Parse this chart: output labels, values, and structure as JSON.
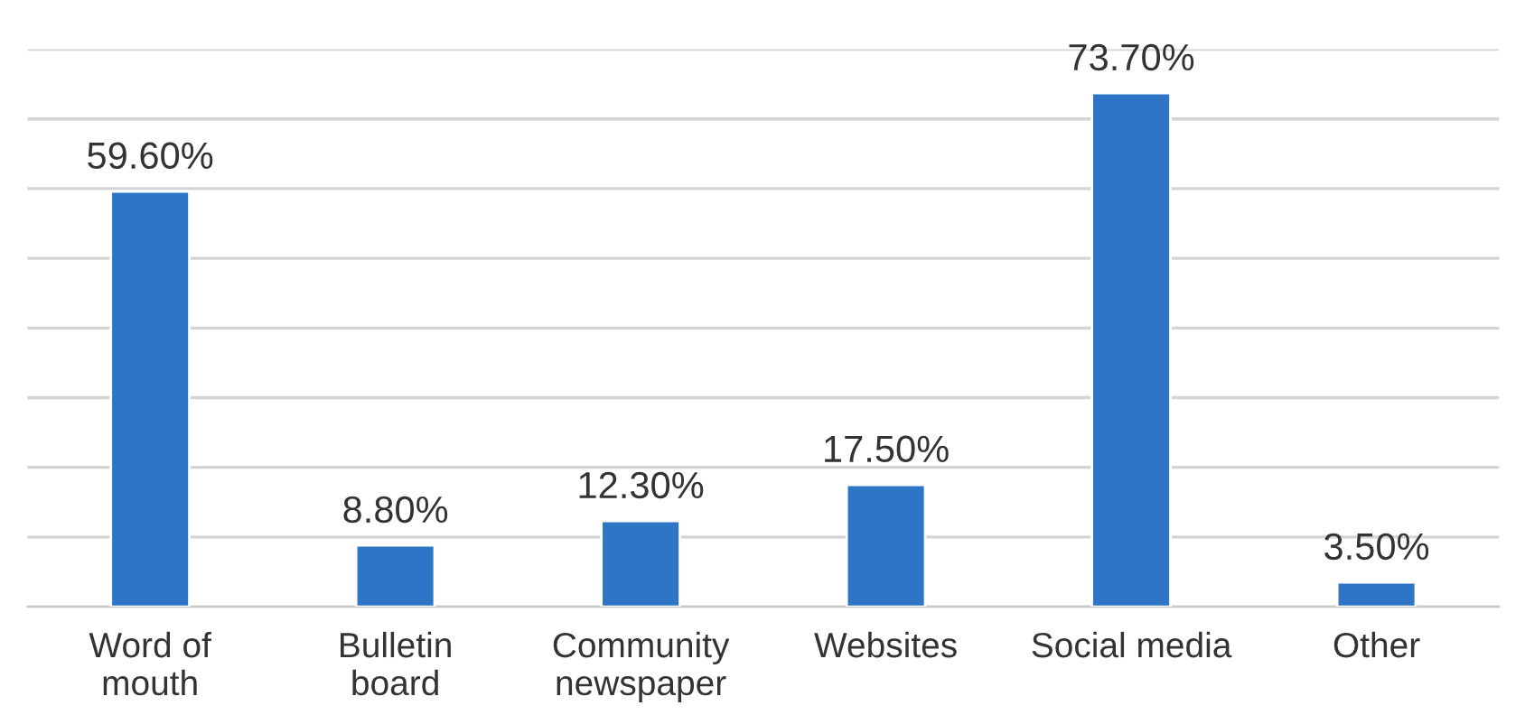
{
  "chart_data": {
    "type": "bar",
    "categories": [
      "Word of\nmouth",
      "Bulletin\nboard",
      "Community\nnewspaper",
      "Websites",
      "Social media",
      "Other"
    ],
    "values": [
      59.6,
      8.8,
      12.3,
      17.5,
      73.7,
      3.5
    ],
    "value_labels": [
      "59.60%",
      "8.80%",
      "12.30%",
      "17.50%",
      "73.70%",
      "3.50%"
    ],
    "color": "#2e75c6",
    "yticks": [
      {
        "value": 0,
        "label": null
      },
      {
        "value": 10,
        "label": null
      },
      {
        "value": 20,
        "label": null
      },
      {
        "value": 30,
        "label": null
      },
      {
        "value": 40,
        "label": null
      },
      {
        "value": 50,
        "label": null
      },
      {
        "value": 60,
        "label": null
      },
      {
        "value": 70,
        "label": null
      },
      {
        "value": 80,
        "label": null
      }
    ],
    "grid": "y",
    "tick_labels": "x"
  }
}
